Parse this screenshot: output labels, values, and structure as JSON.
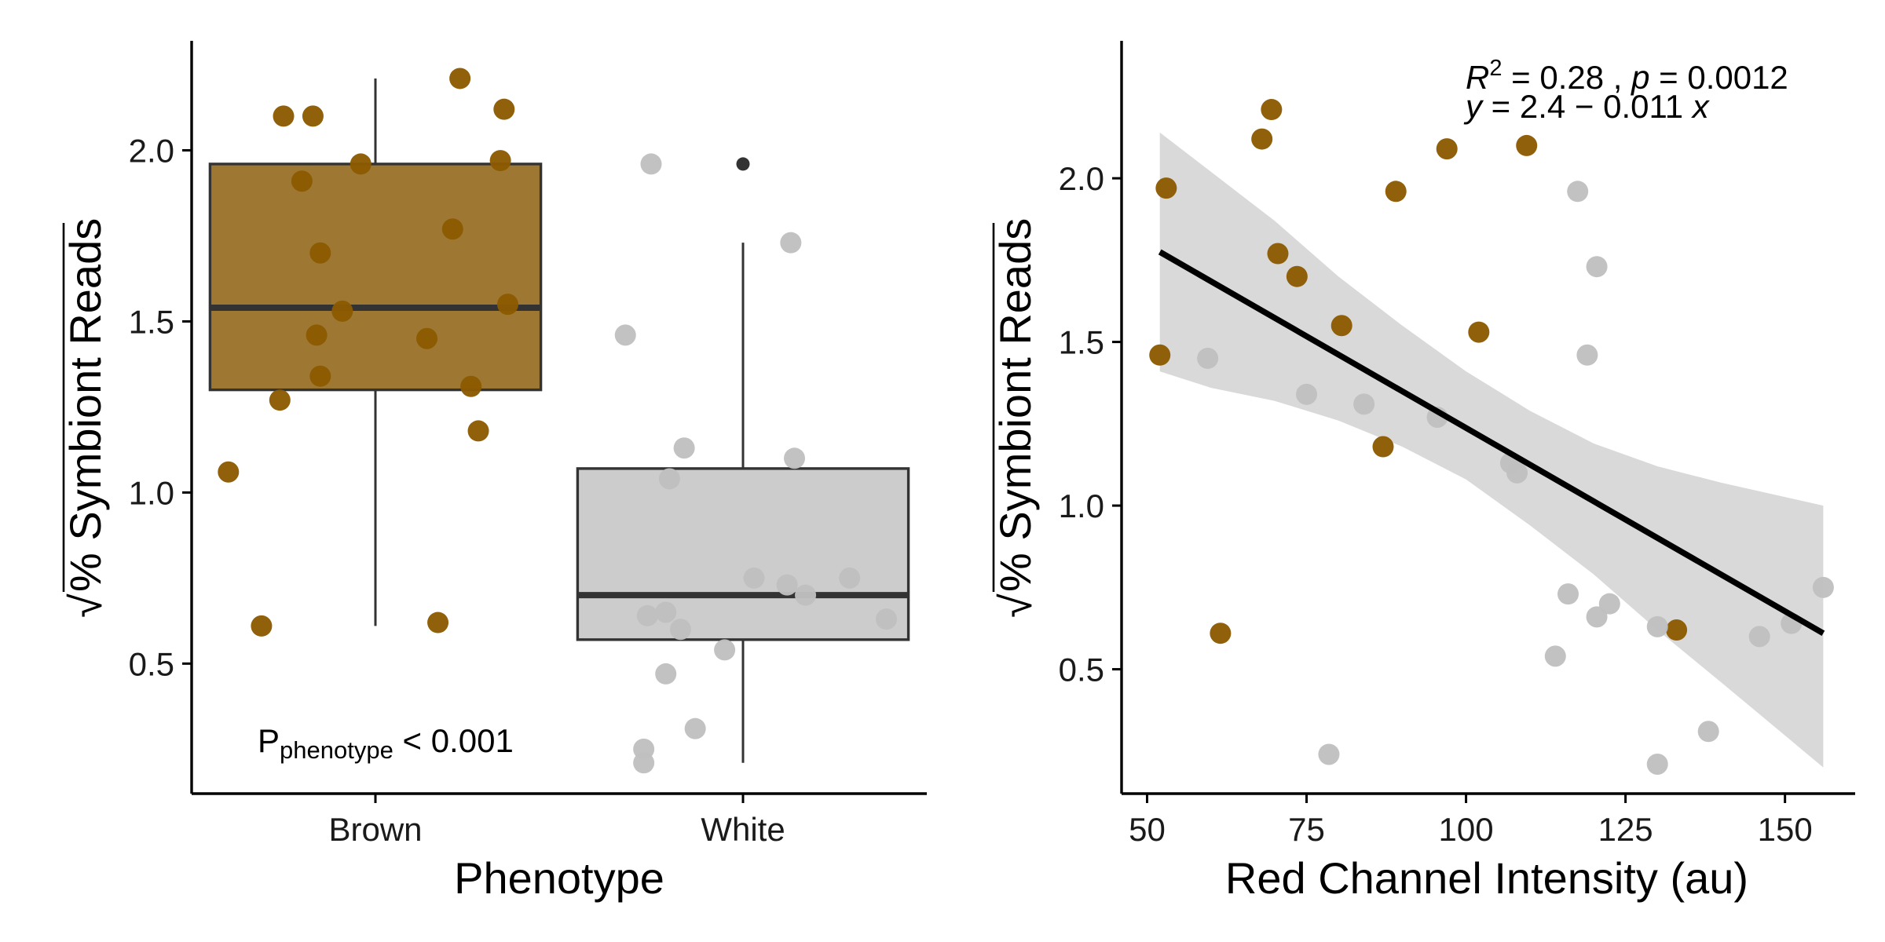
{
  "colors": {
    "brown": "#8B5A00",
    "brown_box": "#9E7832",
    "white_point": "#BFBFBF",
    "white_box": "#CCCCCC",
    "box_line": "#333333",
    "ci_band": "#D9D9D9",
    "fit_line": "#000000"
  },
  "chart_data": [
    {
      "type": "box",
      "title": "",
      "xlabel": "Phenotype",
      "ylabel": "% Symbiont Reads",
      "ylabel_prefix": "√",
      "categories": [
        "Brown",
        "White"
      ],
      "ylim": [
        0.12,
        2.32
      ],
      "yticks": [
        0.5,
        1.0,
        1.5,
        2.0
      ],
      "ytick_labels": [
        "0.5",
        "1.0",
        "1.5",
        "2.0"
      ],
      "grid": false,
      "boxes": [
        {
          "category": "Brown",
          "q1": 1.3,
          "median": 1.54,
          "q3": 1.96,
          "whisker_low": 0.61,
          "whisker_high": 2.21,
          "outliers": []
        },
        {
          "category": "White",
          "q1": 0.57,
          "median": 0.7,
          "q3": 1.07,
          "whisker_low": 0.21,
          "whisker_high": 1.73,
          "outliers": [
            1.96
          ]
        }
      ],
      "points": [
        {
          "category": "Brown",
          "jitter": -0.4,
          "y": 1.06
        },
        {
          "category": "Brown",
          "jitter": -0.31,
          "y": 0.61
        },
        {
          "category": "Brown",
          "jitter": -0.26,
          "y": 1.27
        },
        {
          "category": "Brown",
          "jitter": -0.25,
          "y": 2.1
        },
        {
          "category": "Brown",
          "jitter": -0.2,
          "y": 1.91
        },
        {
          "category": "Brown",
          "jitter": -0.17,
          "y": 2.1
        },
        {
          "category": "Brown",
          "jitter": -0.16,
          "y": 1.46
        },
        {
          "category": "Brown",
          "jitter": -0.15,
          "y": 1.34
        },
        {
          "category": "Brown",
          "jitter": -0.15,
          "y": 1.7
        },
        {
          "category": "Brown",
          "jitter": -0.09,
          "y": 1.53
        },
        {
          "category": "Brown",
          "jitter": -0.04,
          "y": 1.96
        },
        {
          "category": "Brown",
          "jitter": 0.14,
          "y": 1.45
        },
        {
          "category": "Brown",
          "jitter": 0.17,
          "y": 0.62
        },
        {
          "category": "Brown",
          "jitter": 0.21,
          "y": 1.77
        },
        {
          "category": "Brown",
          "jitter": 0.23,
          "y": 2.21
        },
        {
          "category": "Brown",
          "jitter": 0.26,
          "y": 1.31
        },
        {
          "category": "Brown",
          "jitter": 0.28,
          "y": 1.18
        },
        {
          "category": "Brown",
          "jitter": 0.34,
          "y": 1.97
        },
        {
          "category": "Brown",
          "jitter": 0.35,
          "y": 2.12
        },
        {
          "category": "Brown",
          "jitter": 0.36,
          "y": 1.55
        },
        {
          "category": "White",
          "jitter": -0.32,
          "y": 1.46
        },
        {
          "category": "White",
          "jitter": -0.27,
          "y": 0.25
        },
        {
          "category": "White",
          "jitter": -0.27,
          "y": 0.21
        },
        {
          "category": "White",
          "jitter": -0.26,
          "y": 0.64
        },
        {
          "category": "White",
          "jitter": -0.25,
          "y": 1.96
        },
        {
          "category": "White",
          "jitter": -0.21,
          "y": 0.65
        },
        {
          "category": "White",
          "jitter": -0.21,
          "y": 0.47
        },
        {
          "category": "White",
          "jitter": -0.2,
          "y": 1.04
        },
        {
          "category": "White",
          "jitter": -0.17,
          "y": 0.6
        },
        {
          "category": "White",
          "jitter": -0.16,
          "y": 1.13
        },
        {
          "category": "White",
          "jitter": -0.13,
          "y": 0.31
        },
        {
          "category": "White",
          "jitter": -0.05,
          "y": 0.54
        },
        {
          "category": "White",
          "jitter": 0.03,
          "y": 0.75
        },
        {
          "category": "White",
          "jitter": 0.12,
          "y": 0.73
        },
        {
          "category": "White",
          "jitter": 0.13,
          "y": 1.73
        },
        {
          "category": "White",
          "jitter": 0.14,
          "y": 1.1
        },
        {
          "category": "White",
          "jitter": 0.17,
          "y": 0.7
        },
        {
          "category": "White",
          "jitter": 0.29,
          "y": 0.75
        },
        {
          "category": "White",
          "jitter": 0.39,
          "y": 0.63
        }
      ],
      "annotation": {
        "text": "P",
        "subscript": "phenotype",
        "suffix": " < 0.001"
      }
    },
    {
      "type": "scatter",
      "title": "",
      "xlabel": "Red Channel Intensity (au)",
      "ylabel": "% Symbiont Reads",
      "ylabel_prefix": "√",
      "xlim": [
        46,
        161
      ],
      "ylim": [
        0.12,
        2.42
      ],
      "xticks": [
        50,
        75,
        100,
        125,
        150
      ],
      "xtick_labels": [
        "50",
        "75",
        "100",
        "125",
        "150"
      ],
      "yticks": [
        0.5,
        1.0,
        1.5,
        2.0
      ],
      "ytick_labels": [
        "0.5",
        "1.0",
        "1.5",
        "2.0"
      ],
      "grid": false,
      "series": [
        {
          "group": "Brown",
          "points": [
            [
              52,
              1.46
            ],
            [
              53,
              1.97
            ],
            [
              61.5,
              0.61
            ],
            [
              68,
              2.12
            ],
            [
              69.5,
              2.21
            ],
            [
              70.5,
              1.77
            ],
            [
              73.5,
              1.7
            ],
            [
              80.5,
              1.55
            ],
            [
              87,
              1.18
            ],
            [
              89,
              1.96
            ],
            [
              97,
              2.09
            ],
            [
              102,
              1.53
            ],
            [
              109.5,
              2.1
            ],
            [
              133,
              0.62
            ]
          ]
        },
        {
          "group": "White",
          "points": [
            [
              59.5,
              1.45
            ],
            [
              75,
              1.34
            ],
            [
              78.5,
              0.24
            ],
            [
              84,
              1.31
            ],
            [
              95.5,
              1.27
            ],
            [
              107,
              1.13
            ],
            [
              108,
              1.1
            ],
            [
              114,
              0.54
            ],
            [
              116,
              0.73
            ],
            [
              117.5,
              1.96
            ],
            [
              119,
              1.46
            ],
            [
              120.5,
              1.73
            ],
            [
              120.5,
              0.66
            ],
            [
              122.5,
              0.7
            ],
            [
              130,
              0.21
            ],
            [
              130,
              0.63
            ],
            [
              138,
              0.31
            ],
            [
              146,
              0.6
            ],
            [
              151,
              0.64
            ],
            [
              156,
              0.75
            ]
          ]
        }
      ],
      "fit": {
        "x": [
          52,
          156
        ],
        "y": [
          1.775,
          0.61
        ]
      },
      "ci_band": {
        "x": [
          52,
          60,
          70,
          80,
          90,
          100,
          110,
          120,
          130,
          140,
          156
        ],
        "upper": [
          2.14,
          2.02,
          1.87,
          1.7,
          1.55,
          1.41,
          1.29,
          1.19,
          1.12,
          1.07,
          1.0
        ],
        "lower": [
          1.41,
          1.36,
          1.32,
          1.26,
          1.18,
          1.08,
          0.94,
          0.79,
          0.62,
          0.46,
          0.2
        ]
      },
      "stats": {
        "line1": {
          "r": "R",
          "sup": "2",
          "r_rest": " = 0.28 , ",
          "p": "p",
          "p_rest": " = 0.0012"
        },
        "line2": {
          "y": "y",
          "mid": " = 2.4 − 0.011 ",
          "x": "x"
        }
      }
    }
  ]
}
